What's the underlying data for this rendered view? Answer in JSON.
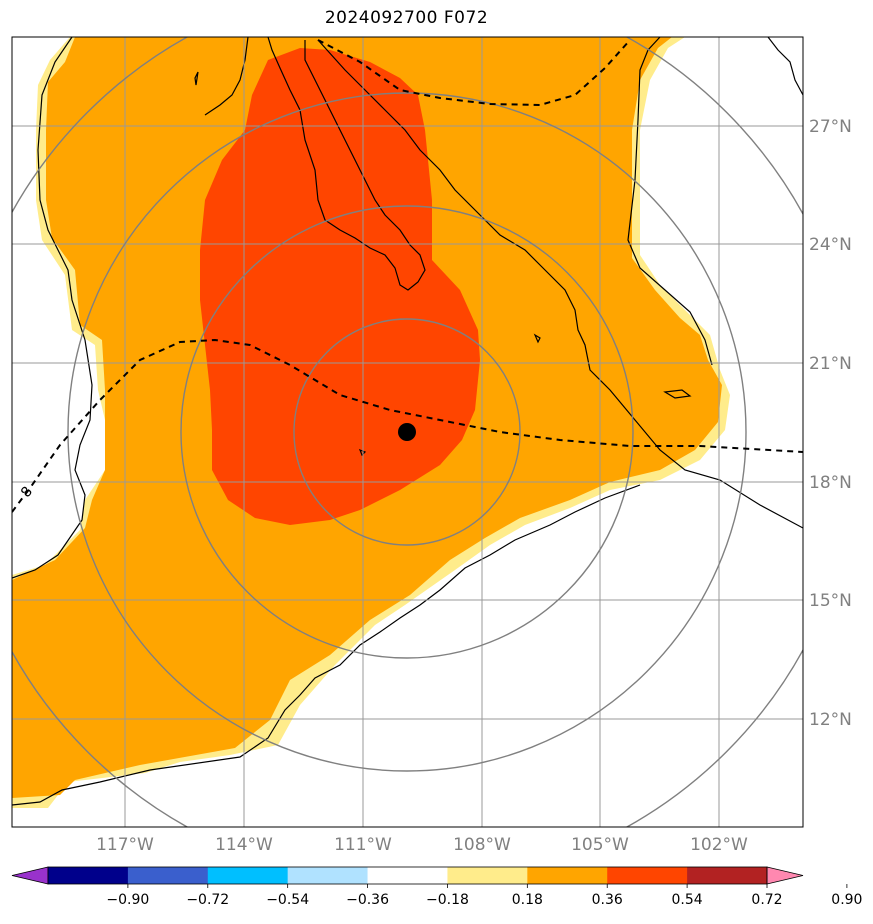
{
  "title": "2024092700 F072",
  "map": {
    "lat_labels": [
      "27°N",
      "24°N",
      "21°N",
      "18°N",
      "15°N",
      "12°N"
    ],
    "lon_labels": [
      "117°W",
      "114°W",
      "111°W",
      "108°W",
      "105°W",
      "102°W"
    ],
    "contour_label": "8",
    "storm_center": {
      "lon": -110,
      "lat": 19.3
    }
  },
  "colorbar": {
    "colors": [
      "#9932cc",
      "#00008b",
      "#3a5fcd",
      "#00bfff",
      "#b0e2ff",
      "#ffffff",
      "#ffec8b",
      "#ffa500",
      "#ff4500",
      "#b22222",
      "#ff88b0"
    ],
    "tick_labels": [
      "−0.90",
      "−0.72",
      "−0.54",
      "−0.36",
      "−0.18",
      "0.18",
      "0.36",
      "0.54",
      "0.72",
      "0.90"
    ]
  }
}
